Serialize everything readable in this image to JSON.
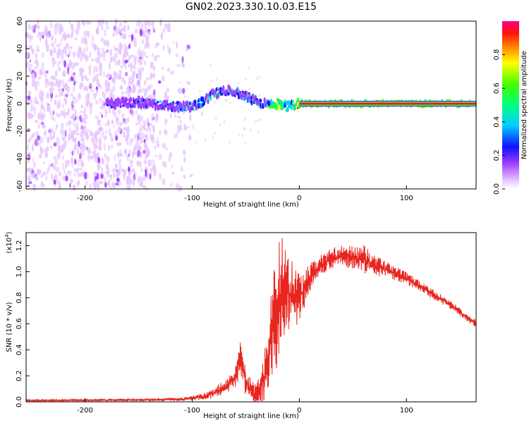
{
  "figure_title": "GN02.2023.330.10.03.E15",
  "colors": {
    "snr_line": "#e8261f",
    "spectral_track_core": "#ff1030",
    "axis": "#000000"
  },
  "chart_data": [
    {
      "type": "heatmap",
      "title": "GN02.2023.330.10.03.E15",
      "xlabel": "Height of straight line (km)",
      "ylabel": "Frequency (Hz)",
      "xlim": [
        -255,
        165
      ],
      "ylim": [
        -62,
        60
      ],
      "xticks": [
        -200,
        -100,
        0,
        100
      ],
      "xtick_labels": [
        "-200",
        "-100",
        "0",
        "100"
      ],
      "yticks": [
        -60,
        -40,
        -20,
        0,
        20,
        40,
        60
      ],
      "ytick_labels": [
        "-60",
        "-40",
        "-20",
        "0",
        "20",
        "40",
        "60"
      ],
      "track": {
        "x": [
          -180,
          -160,
          -140,
          -120,
          -110,
          -100,
          -90,
          -80,
          -70,
          -60,
          -50,
          -40,
          -30,
          -20,
          -10,
          0,
          50,
          100,
          165
        ],
        "frequency_hz": [
          0,
          1,
          0,
          -2,
          -2,
          -2,
          1,
          7,
          10,
          8,
          5,
          2,
          0,
          0,
          -2,
          0,
          0,
          0,
          0
        ],
        "amplitude": [
          0.3,
          0.35,
          0.4,
          0.4,
          0.45,
          0.5,
          0.55,
          0.55,
          0.5,
          0.5,
          0.55,
          0.5,
          0.6,
          0.9,
          0.6,
          0.95,
          0.95,
          0.95,
          0.95
        ]
      },
      "noise_region_km": [
        -255,
        -115
      ],
      "colorbar": {
        "label": "Normalized spectral amplitude",
        "range": [
          0.0,
          1.0
        ],
        "ticks": [
          0.0,
          0.2,
          0.4,
          0.6,
          0.8
        ],
        "tick_labels": [
          "0.0",
          "0.2",
          "0.4",
          "0.6",
          "0.8"
        ]
      }
    },
    {
      "type": "line",
      "xlabel": "Height of straight line (km)",
      "ylabel": "SNR (10 * v/v)",
      "scale_label": "(x10",
      "scale_exponent": "4",
      "scale_close": ")",
      "xlim": [
        -255,
        165
      ],
      "ylim": [
        0,
        1.3
      ],
      "xticks": [
        -200,
        -100,
        0,
        100
      ],
      "xtick_labels": [
        "-200",
        "-100",
        "0",
        "100"
      ],
      "yticks": [
        0.0,
        0.2,
        0.4,
        0.6,
        0.8,
        1.0,
        1.2
      ],
      "ytick_labels": [
        "0.0",
        "0.2",
        "0.4",
        "0.6",
        "0.8",
        "1.0",
        "1.2"
      ],
      "series": [
        {
          "name": "SNR",
          "x": [
            -255,
            -150,
            -110,
            -90,
            -70,
            -60,
            -55,
            -50,
            -40,
            -30,
            -25,
            -20,
            -15,
            -10,
            0,
            10,
            20,
            30,
            40,
            50,
            60,
            70,
            80,
            100,
            120,
            140,
            165
          ],
          "values": [
            0.01,
            0.015,
            0.02,
            0.04,
            0.1,
            0.18,
            0.35,
            0.15,
            0.04,
            0.25,
            0.55,
            0.75,
            0.9,
            0.82,
            0.8,
            0.95,
            1.05,
            1.1,
            1.13,
            1.1,
            1.1,
            1.05,
            1.02,
            0.95,
            0.85,
            0.75,
            0.6
          ],
          "noise": [
            0.004,
            0.006,
            0.008,
            0.015,
            0.04,
            0.06,
            0.08,
            0.07,
            0.05,
            0.15,
            0.25,
            0.3,
            0.25,
            0.2,
            0.12,
            0.07,
            0.05,
            0.05,
            0.05,
            0.06,
            0.07,
            0.05,
            0.04,
            0.03,
            0.025,
            0.02,
            0.02
          ]
        }
      ]
    }
  ]
}
